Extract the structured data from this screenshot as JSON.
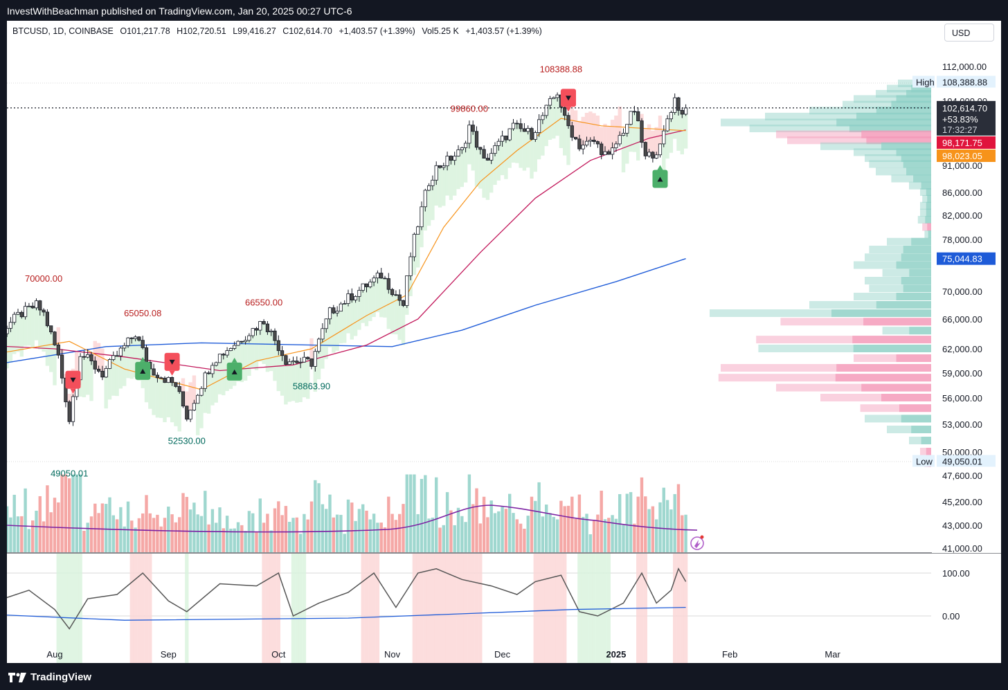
{
  "header": {
    "published": "InvestWithBeachman published on TradingView.com, Jan 20, 2025 00:27 UTC-6"
  },
  "legend": {
    "symbol": "BTCUSD, 1D, COINBASE",
    "open": "O101,217.78",
    "high": "H102,720.51",
    "low": "L99,416.27",
    "close": "C102,614.70",
    "change": "+1,403.57 (+1.39%)",
    "volume": "Vol5.25 K",
    "vol_change": "+1,403.57 (+1.39%)"
  },
  "currency": "USD",
  "footer": {
    "brand": "TradingView"
  },
  "colors": {
    "up": "#26a69a",
    "down": "#ef5350",
    "ema_fast": "#f7931a",
    "sma_mid": "#c2185b",
    "sma_long": "#1e5bd8",
    "vol_ma": "#7b1fa2",
    "osc": "#555555"
  },
  "chart_data": {
    "type": "candlestick",
    "symbol": "BTCUSD",
    "interval": "1D",
    "exchange": "COINBASE",
    "x_ticks": [
      {
        "label": "Aug",
        "date": "2024-08-01"
      },
      {
        "label": "Sep",
        "date": "2024-09-01"
      },
      {
        "label": "Oct",
        "date": "2024-10-01"
      },
      {
        "label": "Nov",
        "date": "2024-11-01"
      },
      {
        "label": "Dec",
        "date": "2024-12-01"
      },
      {
        "label": "2025",
        "date": "2025-01-01"
      },
      {
        "label": "Feb",
        "date": "2025-02-01"
      },
      {
        "label": "Mar",
        "date": "2025-03-01"
      }
    ],
    "y_ticks": [
      {
        "label": "112,000.00",
        "value": 112000
      },
      {
        "label": "104,000.00",
        "value": 104000
      },
      {
        "label": "91,000.00",
        "value": 91000
      },
      {
        "label": "86,000.00",
        "value": 86000
      },
      {
        "label": "82,000.00",
        "value": 82000
      },
      {
        "label": "78,000.00",
        "value": 78000
      },
      {
        "label": "70,000.00",
        "value": 70000
      },
      {
        "label": "66,000.00",
        "value": 66000
      },
      {
        "label": "62,000.00",
        "value": 62000
      },
      {
        "label": "59,000.00",
        "value": 59000
      },
      {
        "label": "56,000.00",
        "value": 56000
      },
      {
        "label": "53,000.00",
        "value": 53000
      },
      {
        "label": "50,000.00",
        "value": 50000
      },
      {
        "label": "47,600.00",
        "value": 47600
      },
      {
        "label": "45,200.00",
        "value": 45200
      },
      {
        "label": "43,000.00",
        "value": 43000
      },
      {
        "label": "41,000.00",
        "value": 41000
      }
    ],
    "osc_ticks": [
      {
        "label": "100.00",
        "value": 100
      },
      {
        "label": "0.00",
        "value": 0
      }
    ],
    "price_badges": [
      {
        "label": "High",
        "value_text": "108,388.88",
        "value": 108388.88,
        "kind": "high"
      },
      {
        "value_text": "102,614.70",
        "value": 102614.7,
        "extra": "+53.83%",
        "timer": "17:32:27",
        "kind": "last"
      },
      {
        "value_text": "98,171.75",
        "value": 98171.75,
        "kind": "sma_mid"
      },
      {
        "value_text": "98,023.05",
        "value": 98023.05,
        "kind": "ema_fast"
      },
      {
        "value_text": "75,044.83",
        "value": 75044.83,
        "kind": "sma_long"
      },
      {
        "label": "Low",
        "value_text": "49,050.01",
        "value": 49050.01,
        "kind": "low"
      }
    ],
    "annotations": [
      {
        "text": "108388.88",
        "date": "2024-12-17",
        "value": 108388.88,
        "color": "#b71c1c"
      },
      {
        "text": "99860.00",
        "date": "2024-11-22",
        "value": 99860,
        "color": "#b71c1c"
      },
      {
        "text": "70000.00",
        "date": "2024-07-29",
        "value": 70000,
        "color": "#b71c1c"
      },
      {
        "text": "65050.08",
        "date": "2024-08-25",
        "value": 65050.08,
        "color": "#b71c1c"
      },
      {
        "text": "66550.00",
        "date": "2024-09-27",
        "value": 66550,
        "color": "#b71c1c"
      },
      {
        "text": "58863.90",
        "date": "2024-10-10",
        "value": 58863.9,
        "color": "#00695c"
      },
      {
        "text": "52530.00",
        "date": "2024-09-06",
        "value": 52530,
        "color": "#00695c"
      },
      {
        "text": "49050.01",
        "date": "2024-08-05",
        "value": 49050.01,
        "color": "#00695c"
      }
    ],
    "signals": [
      {
        "type": "sell",
        "date": "2024-08-06"
      },
      {
        "type": "sell",
        "date": "2024-09-02"
      },
      {
        "type": "sell",
        "date": "2024-12-19"
      },
      {
        "type": "buy",
        "date": "2024-08-25"
      },
      {
        "type": "buy",
        "date": "2024-09-19"
      },
      {
        "type": "buy",
        "date": "2025-01-13"
      }
    ],
    "ohlc_anchor_series": {
      "start_date": "2024-07-11",
      "close_points": [
        [
          "2024-07-11",
          57500
        ],
        [
          "2024-07-15",
          63000
        ],
        [
          "2024-07-22",
          66500
        ],
        [
          "2024-07-27",
          68000
        ],
        [
          "2024-07-29",
          66800
        ],
        [
          "2024-08-02",
          61000
        ],
        [
          "2024-08-05",
          53500
        ],
        [
          "2024-08-08",
          61500
        ],
        [
          "2024-08-14",
          58900
        ],
        [
          "2024-08-23",
          64000
        ],
        [
          "2024-08-27",
          59500
        ],
        [
          "2024-09-03",
          57500
        ],
        [
          "2024-09-06",
          53900
        ],
        [
          "2024-09-13",
          60500
        ],
        [
          "2024-09-20",
          63000
        ],
        [
          "2024-09-27",
          65800
        ],
        [
          "2024-10-03",
          60600
        ],
        [
          "2024-10-10",
          60300
        ],
        [
          "2024-10-15",
          67000
        ],
        [
          "2024-10-20",
          69000
        ],
        [
          "2024-10-29",
          72500
        ],
        [
          "2024-11-04",
          68000
        ],
        [
          "2024-11-06",
          75500
        ],
        [
          "2024-11-11",
          88000
        ],
        [
          "2024-11-13",
          90500
        ],
        [
          "2024-11-20",
          94000
        ],
        [
          "2024-11-22",
          99000
        ],
        [
          "2024-11-26",
          91800
        ],
        [
          "2024-12-04",
          98800
        ],
        [
          "2024-12-09",
          97300
        ],
        [
          "2024-12-16",
          106000
        ],
        [
          "2024-12-18",
          100200
        ],
        [
          "2024-12-22",
          95000
        ],
        [
          "2024-12-26",
          95800
        ],
        [
          "2024-12-30",
          92500
        ],
        [
          "2025-01-03",
          98200
        ],
        [
          "2025-01-06",
          102200
        ],
        [
          "2025-01-09",
          92500
        ],
        [
          "2025-01-13",
          94500
        ],
        [
          "2025-01-15",
          100500
        ],
        [
          "2025-01-17",
          104500
        ],
        [
          "2025-01-19",
          101200
        ],
        [
          "2025-01-20",
          102614.7
        ]
      ]
    },
    "ma_series": {
      "ema_fast": [
        [
          "2024-07-11",
          61000
        ],
        [
          "2024-08-05",
          63000
        ],
        [
          "2024-08-20",
          59500
        ],
        [
          "2024-09-10",
          57000
        ],
        [
          "2024-09-25",
          60500
        ],
        [
          "2024-10-10",
          62000
        ],
        [
          "2024-10-25",
          66500
        ],
        [
          "2024-11-05",
          69500
        ],
        [
          "2024-11-15",
          80000
        ],
        [
          "2024-11-25",
          88000
        ],
        [
          "2024-12-05",
          94000
        ],
        [
          "2024-12-17",
          100500
        ],
        [
          "2024-12-28",
          99000
        ],
        [
          "2025-01-08",
          98500
        ],
        [
          "2025-01-20",
          98023.05
        ]
      ],
      "sma_mid": [
        [
          "2024-07-11",
          62500
        ],
        [
          "2024-08-01",
          62000
        ],
        [
          "2024-08-20",
          61000
        ],
        [
          "2024-09-15",
          59300
        ],
        [
          "2024-10-05",
          60000
        ],
        [
          "2024-10-25",
          62500
        ],
        [
          "2024-11-08",
          66000
        ],
        [
          "2024-11-25",
          76000
        ],
        [
          "2024-12-10",
          85000
        ],
        [
          "2024-12-25",
          92000
        ],
        [
          "2025-01-10",
          96500
        ],
        [
          "2025-01-20",
          98171.75
        ]
      ],
      "sma_long": [
        [
          "2024-07-11",
          59700
        ],
        [
          "2024-08-15",
          62300
        ],
        [
          "2024-09-10",
          62800
        ],
        [
          "2024-10-10",
          62500
        ],
        [
          "2024-11-01",
          62300
        ],
        [
          "2024-11-20",
          64500
        ],
        [
          "2024-12-10",
          68000
        ],
        [
          "2025-01-01",
          71500
        ],
        [
          "2025-01-20",
          75044.83
        ]
      ]
    },
    "oscillator": {
      "values": [
        [
          "2024-07-11",
          80
        ],
        [
          "2024-07-18",
          40
        ],
        [
          "2024-07-25",
          60
        ],
        [
          "2024-08-01",
          15
        ],
        [
          "2024-08-05",
          -30
        ],
        [
          "2024-08-10",
          40
        ],
        [
          "2024-08-18",
          50
        ],
        [
          "2024-08-25",
          100
        ],
        [
          "2024-09-01",
          35
        ],
        [
          "2024-09-06",
          10
        ],
        [
          "2024-09-15",
          75
        ],
        [
          "2024-09-25",
          70
        ],
        [
          "2024-10-01",
          100
        ],
        [
          "2024-10-05",
          0
        ],
        [
          "2024-10-12",
          30
        ],
        [
          "2024-10-20",
          55
        ],
        [
          "2024-10-27",
          100
        ],
        [
          "2024-11-02",
          20
        ],
        [
          "2024-11-08",
          100
        ],
        [
          "2024-11-13",
          110
        ],
        [
          "2024-11-20",
          85
        ],
        [
          "2024-11-28",
          70
        ],
        [
          "2024-12-05",
          50
        ],
        [
          "2024-12-10",
          80
        ],
        [
          "2024-12-17",
          95
        ],
        [
          "2024-12-22",
          10
        ],
        [
          "2024-12-27",
          0
        ],
        [
          "2025-01-03",
          30
        ],
        [
          "2025-01-08",
          100
        ],
        [
          "2025-01-12",
          30
        ],
        [
          "2025-01-16",
          60
        ],
        [
          "2025-01-18",
          110
        ],
        [
          "2025-01-20",
          80
        ]
      ],
      "signal": [
        [
          "2024-07-11",
          5
        ],
        [
          "2024-08-20",
          -10
        ],
        [
          "2024-10-20",
          -5
        ],
        [
          "2024-11-20",
          5
        ],
        [
          "2024-12-20",
          15
        ],
        [
          "2025-01-20",
          20
        ]
      ]
    },
    "volume_scale": {
      "max": 100,
      "ma_level": 38
    },
    "volume_profile": {
      "note_visible": "horizontal histogram on right side",
      "bins": [
        {
          "value": 108000,
          "size": 0.15,
          "dir": "up"
        },
        {
          "value": 106800,
          "size": 0.2,
          "dir": "up"
        },
        {
          "value": 105600,
          "size": 0.25,
          "dir": "up"
        },
        {
          "value": 104400,
          "size": 0.35,
          "dir": "up"
        },
        {
          "value": 103200,
          "size": 0.4,
          "dir": "up"
        },
        {
          "value": 102000,
          "size": 0.55,
          "dir": "up"
        },
        {
          "value": 100800,
          "size": 0.75,
          "dir": "up"
        },
        {
          "value": 99600,
          "size": 0.95,
          "dir": "up"
        },
        {
          "value": 98400,
          "size": 0.82,
          "dir": "up"
        },
        {
          "value": 97200,
          "size": 0.7,
          "dir": "down"
        },
        {
          "value": 96000,
          "size": 0.65,
          "dir": "down"
        },
        {
          "value": 94800,
          "size": 0.5,
          "dir": "up"
        },
        {
          "value": 93600,
          "size": 0.35,
          "dir": "up"
        },
        {
          "value": 92400,
          "size": 0.3,
          "dir": "up"
        },
        {
          "value": 91200,
          "size": 0.28,
          "dir": "up"
        },
        {
          "value": 89800,
          "size": 0.25,
          "dir": "up"
        },
        {
          "value": 88500,
          "size": 0.18,
          "dir": "up"
        },
        {
          "value": 87200,
          "size": 0.1,
          "dir": "up"
        },
        {
          "value": 86000,
          "size": 0.05,
          "dir": "up"
        },
        {
          "value": 84800,
          "size": 0.04,
          "dir": "up"
        },
        {
          "value": 83600,
          "size": 0.05,
          "dir": "up"
        },
        {
          "value": 82400,
          "size": 0.05,
          "dir": "up"
        },
        {
          "value": 81200,
          "size": 0.06,
          "dir": "up"
        },
        {
          "value": 80000,
          "size": 0.04,
          "dir": "down"
        },
        {
          "value": 78800,
          "size": 0.03,
          "dir": "up"
        },
        {
          "value": 77600,
          "size": 0.2,
          "dir": "up"
        },
        {
          "value": 76400,
          "size": 0.28,
          "dir": "up"
        },
        {
          "value": 75200,
          "size": 0.3,
          "dir": "up"
        },
        {
          "value": 74000,
          "size": 0.35,
          "dir": "up"
        },
        {
          "value": 72800,
          "size": 0.22,
          "dir": "up"
        },
        {
          "value": 71600,
          "size": 0.3,
          "dir": "up"
        },
        {
          "value": 70400,
          "size": 0.28,
          "dir": "up"
        },
        {
          "value": 69200,
          "size": 0.35,
          "dir": "up"
        },
        {
          "value": 68000,
          "size": 0.55,
          "dir": "up"
        },
        {
          "value": 66800,
          "size": 1.0,
          "dir": "up"
        },
        {
          "value": 65600,
          "size": 0.68,
          "dir": "down"
        },
        {
          "value": 64400,
          "size": 0.22,
          "dir": "up"
        },
        {
          "value": 63200,
          "size": 0.79,
          "dir": "down"
        },
        {
          "value": 62000,
          "size": 0.78,
          "dir": "up"
        },
        {
          "value": 60800,
          "size": 0.35,
          "dir": "down"
        },
        {
          "value": 59600,
          "size": 0.95,
          "dir": "down"
        },
        {
          "value": 58400,
          "size": 0.96,
          "dir": "down"
        },
        {
          "value": 57200,
          "size": 0.7,
          "dir": "down"
        },
        {
          "value": 56000,
          "size": 0.5,
          "dir": "down"
        },
        {
          "value": 54800,
          "size": 0.32,
          "dir": "down"
        },
        {
          "value": 53600,
          "size": 0.3,
          "dir": "up"
        },
        {
          "value": 52400,
          "size": 0.2,
          "dir": "up"
        },
        {
          "value": 51200,
          "size": 0.1,
          "dir": "up"
        },
        {
          "value": 50000,
          "size": 0.05,
          "dir": "down"
        },
        {
          "value": 48800,
          "size": 0.03,
          "dir": "down"
        }
      ]
    }
  }
}
